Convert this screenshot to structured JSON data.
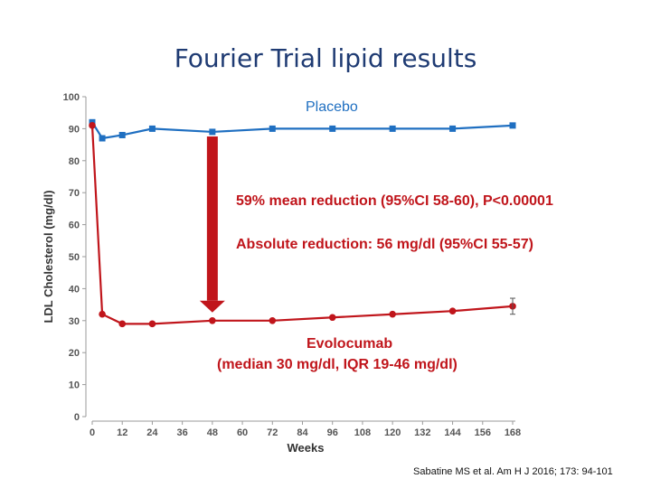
{
  "slide": {
    "title": "Fourier Trial lipid results",
    "citation": "Sabatine MS et al.  Am H J 2016; 173: 94-101"
  },
  "chart_data": {
    "type": "line",
    "title": "Fourier Trial lipid results",
    "xlabel": "Weeks",
    "ylabel": "LDL Cholesterol (mg/dl)",
    "xlim": [
      0,
      168
    ],
    "ylim": [
      0,
      100
    ],
    "x_ticks": [
      0,
      12,
      24,
      36,
      48,
      60,
      72,
      84,
      96,
      108,
      120,
      132,
      144,
      156,
      168
    ],
    "y_ticks": [
      0,
      10,
      20,
      30,
      40,
      50,
      60,
      70,
      80,
      90,
      100
    ],
    "series": [
      {
        "name": "Placebo",
        "color": "#1f6fc1",
        "marker": "square",
        "x": [
          0,
          4,
          12,
          24,
          48,
          72,
          96,
          120,
          144,
          168
        ],
        "y": [
          92,
          87,
          88,
          90,
          89,
          90,
          90,
          90,
          90,
          91
        ]
      },
      {
        "name": "Evolocumab",
        "color": "#c0151b",
        "marker": "circle",
        "x": [
          0,
          4,
          12,
          24,
          48,
          72,
          96,
          120,
          144,
          168
        ],
        "y": [
          91,
          32,
          29,
          29,
          30,
          30,
          31,
          32,
          33,
          34.5
        ],
        "error_bar_last": [
          32,
          37
        ]
      }
    ],
    "annotations": {
      "placebo_label": "Placebo",
      "evolocumab_label": "Evolocumab",
      "evolocumab_sub": "(median 30 mg/dl, IQR 19-46 mg/dl)",
      "mean_reduction": "59% mean reduction (95%CI 58-60), P<0.00001",
      "absolute_reduction": "Absolute reduction: 56 mg/dl (95%CI 55-57)"
    },
    "arrow": {
      "x": 48,
      "from_y": 87,
      "to_y": 32,
      "color": "#c0151b"
    }
  }
}
